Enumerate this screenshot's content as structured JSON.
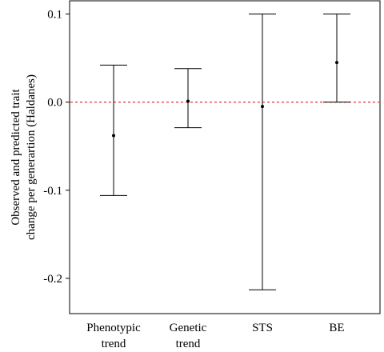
{
  "chart_data": {
    "type": "errorbar",
    "title": "",
    "xlabel": "",
    "ylabel_lines": [
      "Observed and predicted trait",
      "change per generartion (Haldanes)"
    ],
    "ylim": [
      -0.24,
      0.115
    ],
    "y_ticks": [
      0.1,
      0.0,
      -0.1,
      -0.2
    ],
    "y_tick_labels": [
      "0.1",
      "0.0",
      "-0.1",
      "-0.2"
    ],
    "categories": [
      {
        "label_lines": [
          "Phenotypic",
          "trend"
        ],
        "point": -0.038,
        "upper": 0.042,
        "lower": -0.106
      },
      {
        "label_lines": [
          "Genetic",
          "trend"
        ],
        "point": 0.001,
        "upper": 0.038,
        "lower": -0.029
      },
      {
        "label_lines": [
          "STS"
        ],
        "point": -0.005,
        "upper": 0.1,
        "lower": -0.213
      },
      {
        "label_lines": [
          "BE"
        ],
        "point": 0.045,
        "upper": 0.1,
        "lower": 0.0
      }
    ],
    "reference_line": {
      "y": 0.0,
      "style": "dashed",
      "color": "#e8322a"
    },
    "grid": false
  }
}
